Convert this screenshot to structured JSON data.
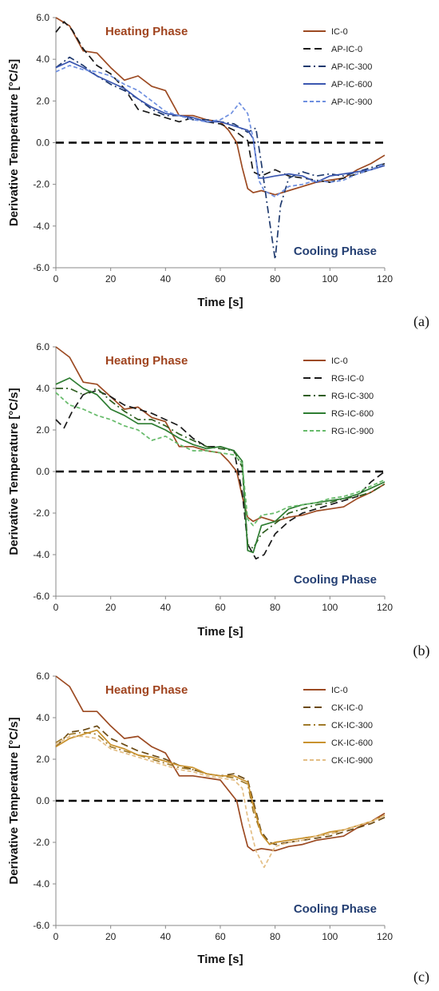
{
  "colors": {
    "ic0": "#9C4A22",
    "zero_line": "#000000",
    "heating_text": "#A0441F",
    "cooling_text": "#243F73",
    "axis": "#888888"
  },
  "chart_data": [
    {
      "type": "line",
      "panel_label": "(a)",
      "xlabel": "Time [s]",
      "ylabel": "Derivative Temperature [°C/s]",
      "xlim": [
        0,
        120
      ],
      "ylim": [
        -6,
        6
      ],
      "xticks": [
        "0",
        "20",
        "40",
        "60",
        "80",
        "100",
        "120"
      ],
      "yticks": [
        "6.0",
        "4.0",
        "2.0",
        "0.0",
        "-2.0",
        "-4.0",
        "-6.0"
      ],
      "annotations": {
        "heating": "Heating Phase",
        "cooling": "Cooling Phase"
      },
      "legend_position": "top-right",
      "zero_line": true,
      "series": [
        {
          "name": "IC-0",
          "color": "#9C4A22",
          "dash": "solid",
          "x": [
            0,
            5,
            10,
            15,
            20,
            25,
            30,
            35,
            40,
            45,
            50,
            55,
            60,
            63,
            66,
            68,
            70,
            72,
            75,
            80,
            85,
            90,
            95,
            100,
            105,
            110,
            115,
            120
          ],
          "y": [
            6.0,
            5.6,
            4.4,
            4.3,
            3.6,
            3.0,
            3.2,
            2.7,
            2.5,
            1.3,
            1.3,
            1.1,
            1.0,
            0.6,
            0.0,
            -1.2,
            -2.2,
            -2.4,
            -2.3,
            -2.5,
            -2.3,
            -2.1,
            -1.9,
            -1.8,
            -1.7,
            -1.3,
            -1.0,
            -0.6
          ]
        },
        {
          "name": "AP-IC-0",
          "color": "#1A1A1A",
          "dash": "dash",
          "x": [
            0,
            3,
            6,
            10,
            15,
            20,
            25,
            30,
            35,
            40,
            45,
            50,
            55,
            60,
            65,
            70,
            72,
            75,
            80,
            85,
            90,
            95,
            100,
            105,
            110,
            115,
            120
          ],
          "y": [
            5.3,
            5.8,
            5.4,
            4.5,
            3.7,
            3.3,
            2.6,
            1.6,
            1.4,
            1.2,
            1.0,
            1.2,
            1.0,
            0.9,
            0.6,
            0.1,
            -1.4,
            -1.6,
            -1.3,
            -1.6,
            -1.7,
            -1.8,
            -1.9,
            -1.7,
            -1.5,
            -1.3,
            -1.0
          ]
        },
        {
          "name": "AP-IC-300",
          "color": "#1F3A6E",
          "dash": "dashdot",
          "x": [
            0,
            5,
            10,
            15,
            20,
            25,
            30,
            35,
            40,
            45,
            50,
            55,
            60,
            65,
            70,
            73,
            75,
            78,
            80,
            82,
            85,
            90,
            95,
            100,
            105,
            110,
            115,
            120
          ],
          "y": [
            3.6,
            4.1,
            3.7,
            3.2,
            2.8,
            2.5,
            2.1,
            1.6,
            1.3,
            1.3,
            1.1,
            1.1,
            1.0,
            0.9,
            0.5,
            0.7,
            -1.0,
            -3.8,
            -5.6,
            -3.0,
            -1.7,
            -1.4,
            -1.6,
            -1.5,
            -1.6,
            -1.4,
            -1.2,
            -1.0
          ]
        },
        {
          "name": "AP-IC-600",
          "color": "#3B57B0",
          "dash": "solid",
          "x": [
            0,
            5,
            10,
            15,
            20,
            25,
            30,
            35,
            40,
            45,
            50,
            55,
            60,
            65,
            70,
            72,
            74,
            76,
            80,
            85,
            90,
            95,
            100,
            105,
            110,
            115,
            120
          ],
          "y": [
            3.6,
            3.9,
            3.6,
            3.2,
            2.9,
            2.6,
            2.1,
            1.7,
            1.4,
            1.3,
            1.2,
            1.0,
            1.0,
            0.8,
            0.6,
            0.2,
            -1.7,
            -1.7,
            -1.6,
            -1.5,
            -1.6,
            -1.9,
            -1.6,
            -1.5,
            -1.4,
            -1.3,
            -1.1
          ]
        },
        {
          "name": "AP-IC-900",
          "color": "#6E8FE0",
          "dash": "shortdash",
          "x": [
            0,
            5,
            10,
            15,
            20,
            25,
            30,
            35,
            40,
            45,
            50,
            55,
            60,
            64,
            67,
            70,
            72,
            74,
            76,
            80,
            85,
            90,
            95,
            100,
            105,
            110,
            115,
            120
          ],
          "y": [
            3.4,
            3.7,
            3.5,
            3.4,
            3.2,
            2.8,
            2.5,
            2.0,
            1.5,
            1.3,
            1.1,
            1.0,
            1.1,
            1.4,
            1.9,
            1.4,
            0.2,
            -1.8,
            -2.3,
            -2.6,
            -2.1,
            -2.0,
            -1.8,
            -1.9,
            -1.8,
            -1.5,
            -1.3,
            -1.0
          ]
        }
      ]
    },
    {
      "type": "line",
      "panel_label": "(b)",
      "xlabel": "Time [s]",
      "ylabel": "Derivative Temperature [°C/s]",
      "xlim": [
        0,
        120
      ],
      "ylim": [
        -6,
        6
      ],
      "xticks": [
        "0",
        "20",
        "40",
        "60",
        "80",
        "100",
        "120"
      ],
      "yticks": [
        "6.0",
        "4.0",
        "2.0",
        "0.0",
        "-2.0",
        "-4.0",
        "-6.0"
      ],
      "annotations": {
        "heating": "Heating Phase",
        "cooling": "Cooling Phase"
      },
      "legend_position": "top-right",
      "zero_line": true,
      "series": [
        {
          "name": "IC-0",
          "color": "#9C4A22",
          "dash": "solid",
          "x": [
            0,
            5,
            10,
            15,
            20,
            25,
            30,
            35,
            40,
            45,
            50,
            55,
            60,
            63,
            66,
            68,
            70,
            72,
            75,
            80,
            85,
            90,
            95,
            100,
            105,
            110,
            115,
            120
          ],
          "y": [
            6.0,
            5.5,
            4.3,
            4.2,
            3.6,
            3.0,
            3.1,
            2.6,
            2.4,
            1.2,
            1.2,
            1.0,
            0.9,
            0.5,
            0.0,
            -1.2,
            -2.2,
            -2.4,
            -2.2,
            -2.4,
            -2.2,
            -2.1,
            -1.9,
            -1.8,
            -1.7,
            -1.3,
            -1.0,
            -0.6
          ]
        },
        {
          "name": "RG-IC-0",
          "color": "#1A1A1A",
          "dash": "dash",
          "x": [
            0,
            3,
            6,
            10,
            15,
            20,
            25,
            30,
            35,
            40,
            45,
            50,
            55,
            60,
            65,
            68,
            70,
            73,
            76,
            80,
            85,
            90,
            95,
            100,
            105,
            110,
            115,
            120
          ],
          "y": [
            2.5,
            2.1,
            2.9,
            3.7,
            3.9,
            3.6,
            3.2,
            3.0,
            2.8,
            2.5,
            2.2,
            1.6,
            1.2,
            1.2,
            1.0,
            -1.0,
            -3.5,
            -4.2,
            -4.0,
            -3.0,
            -2.4,
            -2.0,
            -1.8,
            -1.6,
            -1.4,
            -1.2,
            -0.5,
            0.0
          ]
        },
        {
          "name": "RG-IC-300",
          "color": "#2F5E20",
          "dash": "dashdot",
          "x": [
            0,
            5,
            10,
            15,
            20,
            25,
            30,
            35,
            40,
            45,
            50,
            55,
            60,
            65,
            68,
            70,
            72,
            75,
            80,
            85,
            90,
            95,
            100,
            105,
            110,
            115,
            120
          ],
          "y": [
            4.0,
            4.0,
            3.7,
            4.0,
            3.4,
            2.9,
            2.5,
            2.5,
            2.2,
            1.8,
            1.5,
            1.2,
            1.1,
            1.0,
            0.2,
            -3.5,
            -3.7,
            -3.0,
            -2.5,
            -2.0,
            -1.8,
            -1.6,
            -1.5,
            -1.3,
            -1.2,
            -1.0,
            -0.6
          ]
        },
        {
          "name": "RG-IC-600",
          "color": "#2E7D32",
          "dash": "solid",
          "x": [
            0,
            5,
            10,
            15,
            20,
            25,
            30,
            35,
            40,
            45,
            50,
            55,
            60,
            65,
            68,
            70,
            72,
            75,
            80,
            85,
            90,
            95,
            100,
            105,
            110,
            115,
            120
          ],
          "y": [
            4.2,
            4.5,
            4.0,
            3.7,
            3.0,
            2.7,
            2.3,
            2.3,
            2.0,
            1.6,
            1.3,
            1.1,
            1.2,
            1.0,
            0.5,
            -3.8,
            -3.9,
            -2.6,
            -2.4,
            -1.8,
            -1.6,
            -1.5,
            -1.4,
            -1.3,
            -1.1,
            -0.8,
            -0.5
          ]
        },
        {
          "name": "RG-IC-900",
          "color": "#66BB6A",
          "dash": "shortdash",
          "x": [
            0,
            5,
            10,
            15,
            20,
            25,
            30,
            35,
            40,
            45,
            50,
            55,
            60,
            65,
            68,
            70,
            72,
            75,
            80,
            85,
            90,
            95,
            100,
            105,
            110,
            115,
            120
          ],
          "y": [
            3.8,
            3.2,
            3.0,
            2.7,
            2.5,
            2.2,
            2.0,
            1.5,
            1.7,
            1.3,
            1.0,
            1.0,
            0.9,
            0.8,
            0.4,
            -2.3,
            -2.6,
            -2.1,
            -2.0,
            -1.7,
            -1.6,
            -1.5,
            -1.3,
            -1.2,
            -1.0,
            -0.7,
            -0.4
          ]
        }
      ]
    },
    {
      "type": "line",
      "panel_label": "(c)",
      "xlabel": "Time [s]",
      "ylabel": "Derivative Temperature [°C/s]",
      "xlim": [
        0,
        120
      ],
      "ylim": [
        -6,
        6
      ],
      "xticks": [
        "0",
        "20",
        "40",
        "60",
        "80",
        "100",
        "120"
      ],
      "yticks": [
        "6.0",
        "4.0",
        "2.0",
        "0.0",
        "-2.0",
        "-4.0",
        "-6.0"
      ],
      "annotations": {
        "heating": "Heating Phase",
        "cooling": "Cooling Phase"
      },
      "legend_position": "top-right",
      "zero_line": true,
      "series": [
        {
          "name": "IC-0",
          "color": "#9C4A22",
          "dash": "solid",
          "x": [
            0,
            5,
            10,
            15,
            20,
            25,
            30,
            35,
            40,
            45,
            50,
            55,
            60,
            63,
            66,
            68,
            70,
            72,
            75,
            80,
            85,
            90,
            95,
            100,
            105,
            110,
            115,
            120
          ],
          "y": [
            6.0,
            5.5,
            4.3,
            4.3,
            3.6,
            3.0,
            3.1,
            2.6,
            2.3,
            1.2,
            1.2,
            1.1,
            1.0,
            0.5,
            0.0,
            -1.2,
            -2.2,
            -2.4,
            -2.3,
            -2.4,
            -2.2,
            -2.1,
            -1.9,
            -1.8,
            -1.7,
            -1.3,
            -1.0,
            -0.6
          ]
        },
        {
          "name": "CK-IC-0",
          "color": "#6B4A14",
          "dash": "dash",
          "x": [
            0,
            5,
            10,
            15,
            20,
            25,
            30,
            35,
            40,
            45,
            50,
            55,
            60,
            65,
            70,
            72,
            75,
            78,
            80,
            85,
            90,
            95,
            100,
            105,
            110,
            115,
            120
          ],
          "y": [
            2.6,
            3.3,
            3.4,
            3.6,
            3.0,
            2.7,
            2.4,
            2.2,
            2.0,
            1.7,
            1.5,
            1.3,
            1.2,
            1.3,
            1.0,
            0.0,
            -1.5,
            -2.0,
            -2.1,
            -2.0,
            -1.9,
            -1.8,
            -1.7,
            -1.5,
            -1.3,
            -1.1,
            -0.8
          ]
        },
        {
          "name": "CK-IC-300",
          "color": "#A07A2A",
          "dash": "dashdot",
          "x": [
            0,
            5,
            10,
            15,
            20,
            25,
            30,
            35,
            40,
            45,
            50,
            55,
            60,
            65,
            70,
            72,
            75,
            78,
            80,
            85,
            90,
            95,
            100,
            105,
            110,
            115,
            120
          ],
          "y": [
            2.8,
            3.2,
            3.3,
            3.2,
            2.6,
            2.4,
            2.2,
            2.0,
            1.8,
            1.6,
            1.5,
            1.3,
            1.2,
            1.1,
            0.8,
            -0.5,
            -1.6,
            -2.1,
            -2.0,
            -1.9,
            -1.8,
            -1.7,
            -1.6,
            -1.4,
            -1.2,
            -1.0,
            -0.7
          ]
        },
        {
          "name": "CK-IC-600",
          "color": "#C9922E",
          "dash": "solid",
          "x": [
            0,
            5,
            10,
            15,
            20,
            25,
            30,
            35,
            40,
            45,
            50,
            55,
            60,
            65,
            70,
            72,
            75,
            78,
            80,
            85,
            90,
            95,
            100,
            105,
            110,
            115,
            120
          ],
          "y": [
            2.6,
            3.0,
            3.2,
            3.4,
            2.7,
            2.5,
            2.2,
            2.1,
            1.9,
            1.7,
            1.6,
            1.3,
            1.2,
            1.2,
            0.9,
            -0.2,
            -1.6,
            -2.1,
            -2.0,
            -1.9,
            -1.8,
            -1.7,
            -1.5,
            -1.4,
            -1.2,
            -1.0,
            -0.7
          ]
        },
        {
          "name": "CK-IC-900",
          "color": "#E3BE85",
          "dash": "shortdash",
          "x": [
            0,
            5,
            10,
            15,
            20,
            25,
            30,
            35,
            40,
            45,
            50,
            55,
            60,
            65,
            68,
            70,
            73,
            76,
            80,
            85,
            90,
            95,
            100,
            105,
            110,
            115,
            120
          ],
          "y": [
            2.7,
            3.1,
            3.1,
            3.0,
            2.5,
            2.3,
            2.1,
            1.9,
            1.7,
            1.5,
            1.4,
            1.2,
            1.1,
            1.0,
            0.6,
            -0.8,
            -2.4,
            -3.2,
            -2.2,
            -2.0,
            -1.9,
            -1.7,
            -1.6,
            -1.4,
            -1.2,
            -1.0,
            -0.7
          ]
        }
      ]
    }
  ]
}
